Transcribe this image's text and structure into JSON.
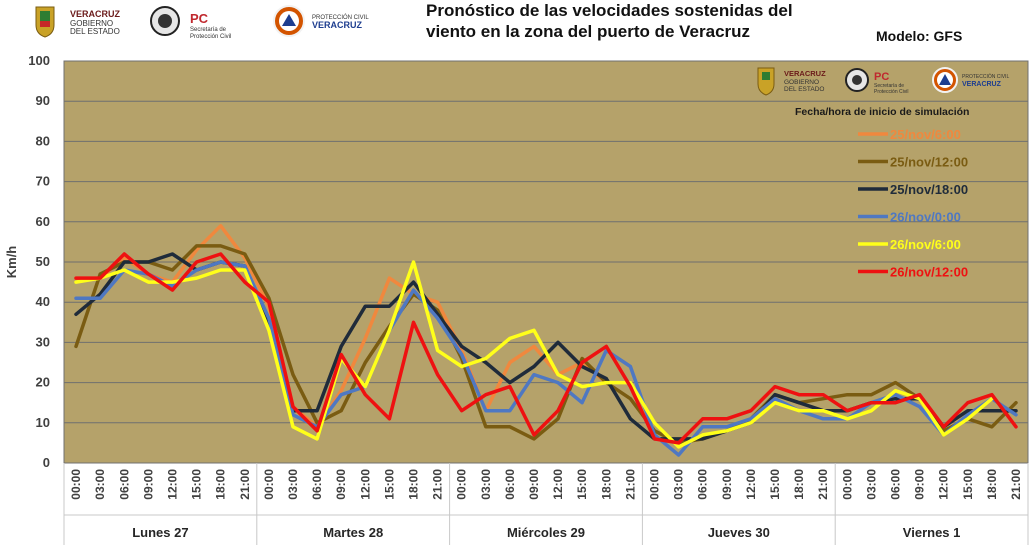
{
  "header": {
    "title_line1": "Pronóstico de las velocidades sostenidas  del",
    "title_line2": "viento en la zona del puerto de Veracruz",
    "model": "Modelo: GFS"
  },
  "logos": {
    "veracruz_1": "VERACRUZ",
    "veracruz_2": "GOBIERNO",
    "veracruz_3": "DEL ESTADO",
    "pc": "PC",
    "pc_1": "Secretaría de",
    "pc_2": "Protección Civil",
    "pcv_1": "PROTECCIÓN CIVIL",
    "pcv_2": "VERACRUZ"
  },
  "chart_data": {
    "type": "line",
    "ylabel": "Km/h",
    "ylim": [
      0,
      100
    ],
    "yticks": [
      0,
      10,
      20,
      30,
      40,
      50,
      60,
      70,
      80,
      90,
      100
    ],
    "x": [
      "00:00",
      "03:00",
      "06:00",
      "09:00",
      "12:00",
      "15:00",
      "18:00",
      "21:00",
      "00:00",
      "03:00",
      "06:00",
      "09:00",
      "12:00",
      "15:00",
      "18:00",
      "21:00",
      "00:00",
      "03:00",
      "06:00",
      "09:00",
      "12:00",
      "15:00",
      "18:00",
      "21:00",
      "00:00",
      "03:00",
      "06:00",
      "09:00",
      "12:00",
      "15:00",
      "18:00",
      "21:00",
      "00:00",
      "03:00",
      "06:00",
      "09:00",
      "12:00",
      "15:00",
      "18:00",
      "21:00"
    ],
    "days": [
      "Lunes 27",
      "Martes 28",
      "Miércoles 29",
      "Jueves 30",
      "Viernes 1"
    ],
    "legend_title": "Fecha/hora de inicio de simulación",
    "legend_position": "top-right",
    "background": "#b5a26a",
    "series": [
      {
        "name": "25/nov/6:00",
        "color": "#f0883e",
        "values": [
          46,
          46,
          51,
          47,
          45,
          53,
          59,
          51,
          39,
          14,
          9,
          18,
          31,
          46,
          42,
          40,
          28,
          13,
          25,
          29,
          22,
          25,
          20,
          null,
          null,
          null,
          null,
          null,
          null,
          null,
          null,
          null,
          null,
          null,
          null,
          null,
          null,
          null,
          null,
          null
        ]
      },
      {
        "name": "25/nov/12:00",
        "color": "#7a5c12",
        "values": [
          29,
          47,
          50,
          50,
          48,
          54,
          54,
          52,
          41,
          22,
          10,
          13,
          25,
          34,
          42,
          38,
          26,
          9,
          9,
          6,
          11,
          26,
          20,
          16,
          8,
          5,
          6,
          8,
          11,
          17,
          15,
          16,
          17,
          17,
          20,
          16,
          8,
          11,
          9,
          15
        ]
      },
      {
        "name": "25/nov/18:00",
        "color": "#1f2b3a",
        "values": [
          37,
          42,
          50,
          50,
          52,
          48,
          50,
          49,
          35,
          13,
          13,
          29,
          39,
          39,
          45,
          37,
          29,
          25,
          20,
          24,
          30,
          24,
          21,
          11,
          6,
          6,
          6,
          8,
          10,
          17,
          15,
          13,
          13,
          15,
          16,
          16,
          9,
          13,
          13,
          13
        ]
      },
      {
        "name": "26/nov/0:00",
        "color": "#4f78c2",
        "values": [
          41,
          41,
          48,
          47,
          44,
          48,
          50,
          49,
          36,
          12,
          9,
          17,
          19,
          33,
          43,
          36,
          27,
          13,
          13,
          22,
          20,
          15,
          28,
          24,
          7,
          2,
          9,
          9,
          11,
          16,
          13,
          11,
          11,
          15,
          17,
          14,
          7,
          12,
          16,
          12
        ]
      },
      {
        "name": "26/nov/6:00",
        "color": "#ffff1a",
        "values": [
          45,
          46,
          48,
          45,
          45,
          46,
          48,
          48,
          33,
          9,
          6,
          26,
          19,
          33,
          50,
          28,
          24,
          26,
          31,
          33,
          22,
          19,
          20,
          20,
          10,
          4,
          7,
          8,
          10,
          15,
          13,
          13,
          11,
          13,
          18,
          16,
          7,
          11,
          16,
          null
        ]
      },
      {
        "name": "26/nov/12:00",
        "color": "#ee1111",
        "values": [
          46,
          46,
          52,
          47,
          43,
          50,
          52,
          45,
          40,
          14,
          8,
          27,
          17,
          11,
          35,
          22,
          13,
          17,
          19,
          7,
          13,
          25,
          29,
          19,
          6,
          5,
          11,
          11,
          13,
          19,
          17,
          17,
          13,
          15,
          15,
          17,
          9,
          15,
          17,
          9
        ]
      }
    ]
  }
}
